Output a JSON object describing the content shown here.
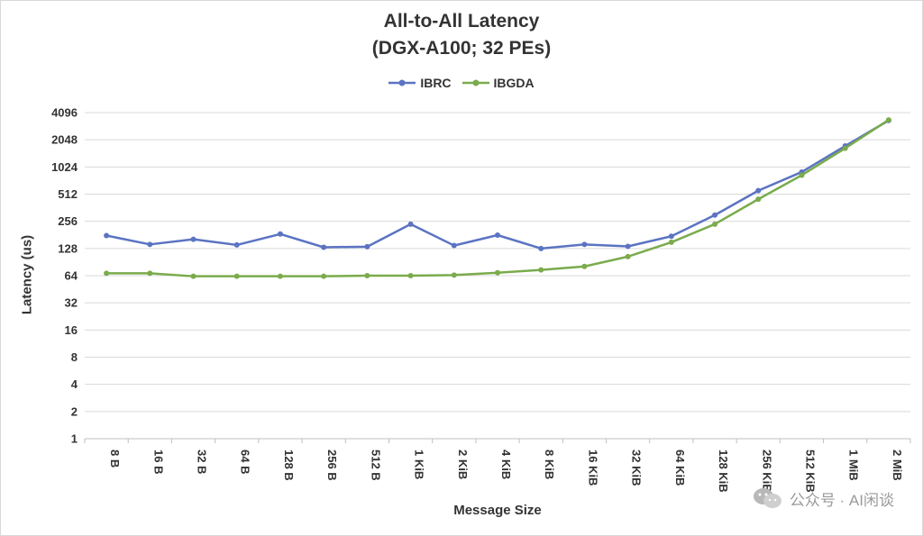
{
  "chart_data": {
    "type": "line",
    "title_line1": "All-to-All Latency",
    "title_line2": "(DGX-A100; 32 PEs)",
    "xlabel": "Message Size",
    "ylabel": "Latency (us)",
    "y_scale": "log2",
    "ylim": [
      1,
      4096
    ],
    "y_ticks": [
      "1",
      "2",
      "4",
      "8",
      "16",
      "32",
      "64",
      "128",
      "256",
      "512",
      "1024",
      "2048",
      "4096"
    ],
    "categories": [
      "8 B",
      "16 B",
      "32 B",
      "64 B",
      "128 B",
      "256 B",
      "512 B",
      "1 KiB",
      "2 KiB",
      "4 KiB",
      "8 KiB",
      "16 KiB",
      "32 KiB",
      "64 KiB",
      "128 KiB",
      "256 KiB",
      "512 KiB",
      "1 MiB",
      "2 MiB"
    ],
    "series": [
      {
        "name": "IBRC",
        "color": "#5b73c2",
        "values": [
          178,
          142,
          162,
          140,
          185,
          132,
          134,
          238,
          138,
          180,
          128,
          142,
          135,
          175,
          300,
          560,
          900,
          1750,
          3350
        ]
      },
      {
        "name": "IBGDA",
        "color": "#7aab4c",
        "values": [
          68,
          68,
          63,
          63,
          63,
          63,
          64,
          64,
          65,
          69,
          74,
          81,
          104,
          150,
          238,
          450,
          830,
          1650,
          3400
        ]
      }
    ],
    "legend_position": "top-center",
    "grid": true
  },
  "watermark": {
    "text": "公众号 · AI闲谈",
    "icon": "wechat-logo-icon"
  }
}
